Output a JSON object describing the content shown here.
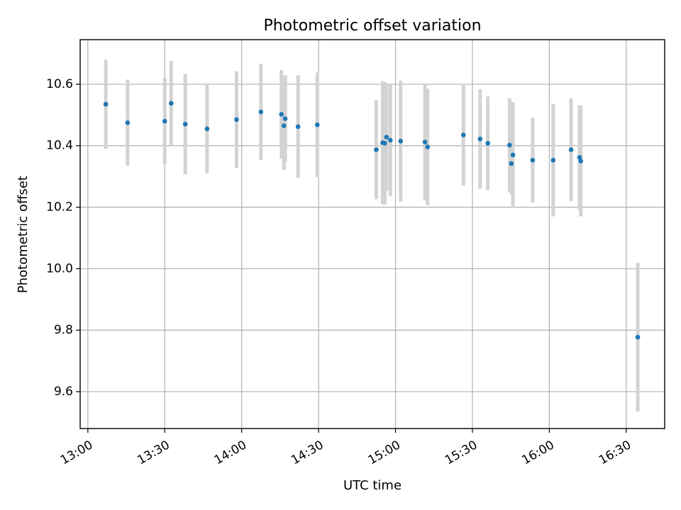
{
  "chart_data": {
    "type": "scatter",
    "title": "Photometric offset variation",
    "xlabel": "UTC time",
    "ylabel": "Photometric offset",
    "grid": true,
    "xlim": [
      -3,
      225
    ],
    "ylim": [
      9.48,
      10.745
    ],
    "x_unit": "minutes after 13:00 UTC",
    "x_ticks": [
      {
        "value": 0,
        "label": "13:00"
      },
      {
        "value": 30,
        "label": "13:30"
      },
      {
        "value": 60,
        "label": "14:00"
      },
      {
        "value": 90,
        "label": "14:30"
      },
      {
        "value": 120,
        "label": "15:00"
      },
      {
        "value": 150,
        "label": "15:30"
      },
      {
        "value": 180,
        "label": "16:00"
      },
      {
        "value": 210,
        "label": "16:30"
      }
    ],
    "y_ticks": [
      {
        "value": 9.6,
        "label": "9.6"
      },
      {
        "value": 9.8,
        "label": "9.8"
      },
      {
        "value": 10.0,
        "label": "10.0"
      },
      {
        "value": 10.2,
        "label": "10.2"
      },
      {
        "value": 10.4,
        "label": "10.4"
      },
      {
        "value": 10.6,
        "label": "10.6"
      }
    ],
    "colors": {
      "point": "#1f77b4",
      "errorbar": "#d3d3d3",
      "grid": "#b0b0b0",
      "axis": "#000000",
      "background": "#ffffff"
    },
    "series": [
      {
        "name": "offset",
        "points": [
          {
            "x": 7.0,
            "y": 10.535,
            "err": 0.145
          },
          {
            "x": 15.5,
            "y": 10.475,
            "err": 0.14
          },
          {
            "x": 30.0,
            "y": 10.48,
            "err": 0.14
          },
          {
            "x": 32.5,
            "y": 10.538,
            "err": 0.138
          },
          {
            "x": 38.0,
            "y": 10.47,
            "err": 0.163
          },
          {
            "x": 46.5,
            "y": 10.455,
            "err": 0.145
          },
          {
            "x": 58.0,
            "y": 10.485,
            "err": 0.157
          },
          {
            "x": 67.5,
            "y": 10.51,
            "err": 0.157
          },
          {
            "x": 75.5,
            "y": 10.502,
            "err": 0.144
          },
          {
            "x": 76.5,
            "y": 10.465,
            "err": 0.144
          },
          {
            "x": 77.0,
            "y": 10.488,
            "err": 0.141
          },
          {
            "x": 82.0,
            "y": 10.462,
            "err": 0.167
          },
          {
            "x": 89.5,
            "y": 10.468,
            "err": 0.17
          },
          {
            "x": 112.5,
            "y": 10.387,
            "err": 0.161
          },
          {
            "x": 115.0,
            "y": 10.41,
            "err": 0.2
          },
          {
            "x": 115.8,
            "y": 10.408,
            "err": 0.2
          },
          {
            "x": 116.5,
            "y": 10.428,
            "err": 0.175
          },
          {
            "x": 118.0,
            "y": 10.418,
            "err": 0.182
          },
          {
            "x": 122.0,
            "y": 10.415,
            "err": 0.197
          },
          {
            "x": 131.5,
            "y": 10.412,
            "err": 0.19
          },
          {
            "x": 132.5,
            "y": 10.396,
            "err": 0.19
          },
          {
            "x": 146.5,
            "y": 10.435,
            "err": 0.165
          },
          {
            "x": 153.0,
            "y": 10.422,
            "err": 0.162
          },
          {
            "x": 156.0,
            "y": 10.408,
            "err": 0.152
          },
          {
            "x": 164.5,
            "y": 10.402,
            "err": 0.152
          },
          {
            "x": 165.2,
            "y": 10.342,
            "err": 0.1
          },
          {
            "x": 165.8,
            "y": 10.37,
            "err": 0.172
          },
          {
            "x": 173.5,
            "y": 10.353,
            "err": 0.138
          },
          {
            "x": 181.5,
            "y": 10.353,
            "err": 0.183
          },
          {
            "x": 188.5,
            "y": 10.387,
            "err": 0.167
          },
          {
            "x": 191.8,
            "y": 10.362,
            "err": 0.17
          },
          {
            "x": 192.3,
            "y": 10.35,
            "err": 0.18
          },
          {
            "x": 214.5,
            "y": 9.777,
            "err": 0.242
          }
        ]
      }
    ]
  }
}
